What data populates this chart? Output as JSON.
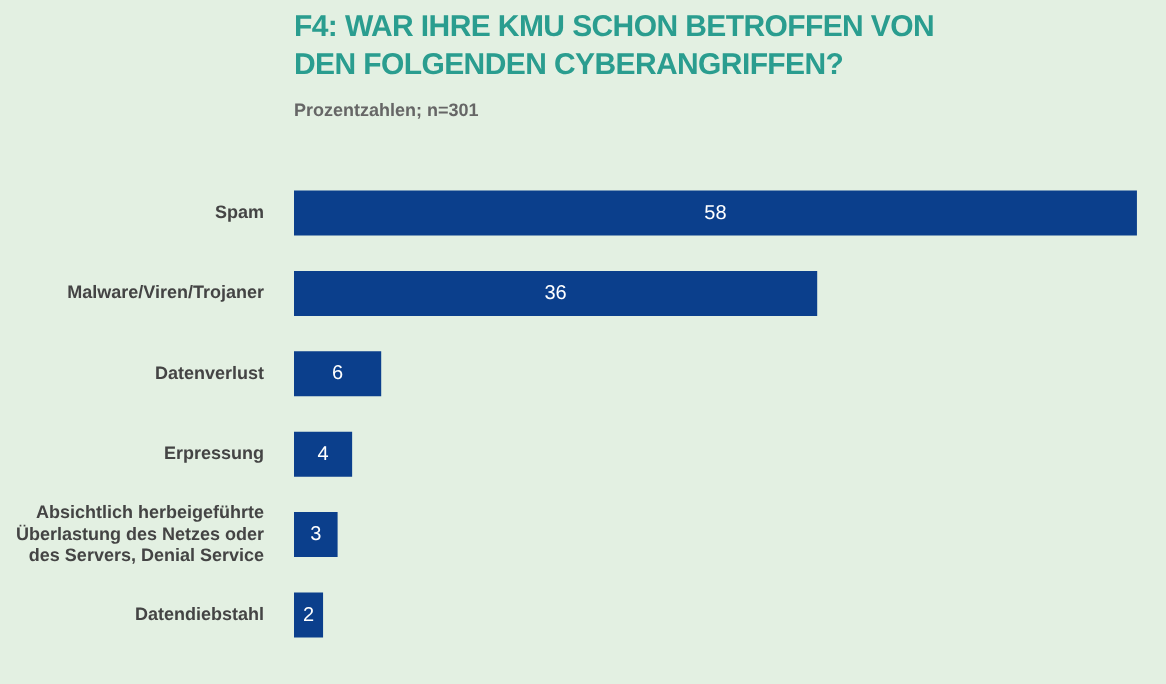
{
  "chart_data": {
    "type": "bar",
    "orientation": "horizontal",
    "title": "F4: WAR IHRE KMU SCHON BETROFFEN VON DEN FOLGENDEN CYBERANGRIFFEN?",
    "subtitle": "Prozentzahlen; n=301",
    "categories": [
      "Spam",
      "Malware/Viren/Trojaner",
      "Datenverlust",
      "Erpressung",
      "Absichtlich herbeigeführte Überlastung des Netzes oder des Servers, Denial Service",
      "Datendiebstahl"
    ],
    "values": [
      58,
      36,
      6,
      4,
      3,
      2
    ],
    "color": "#0b3f8c",
    "data_labels": true,
    "legend": false
  }
}
